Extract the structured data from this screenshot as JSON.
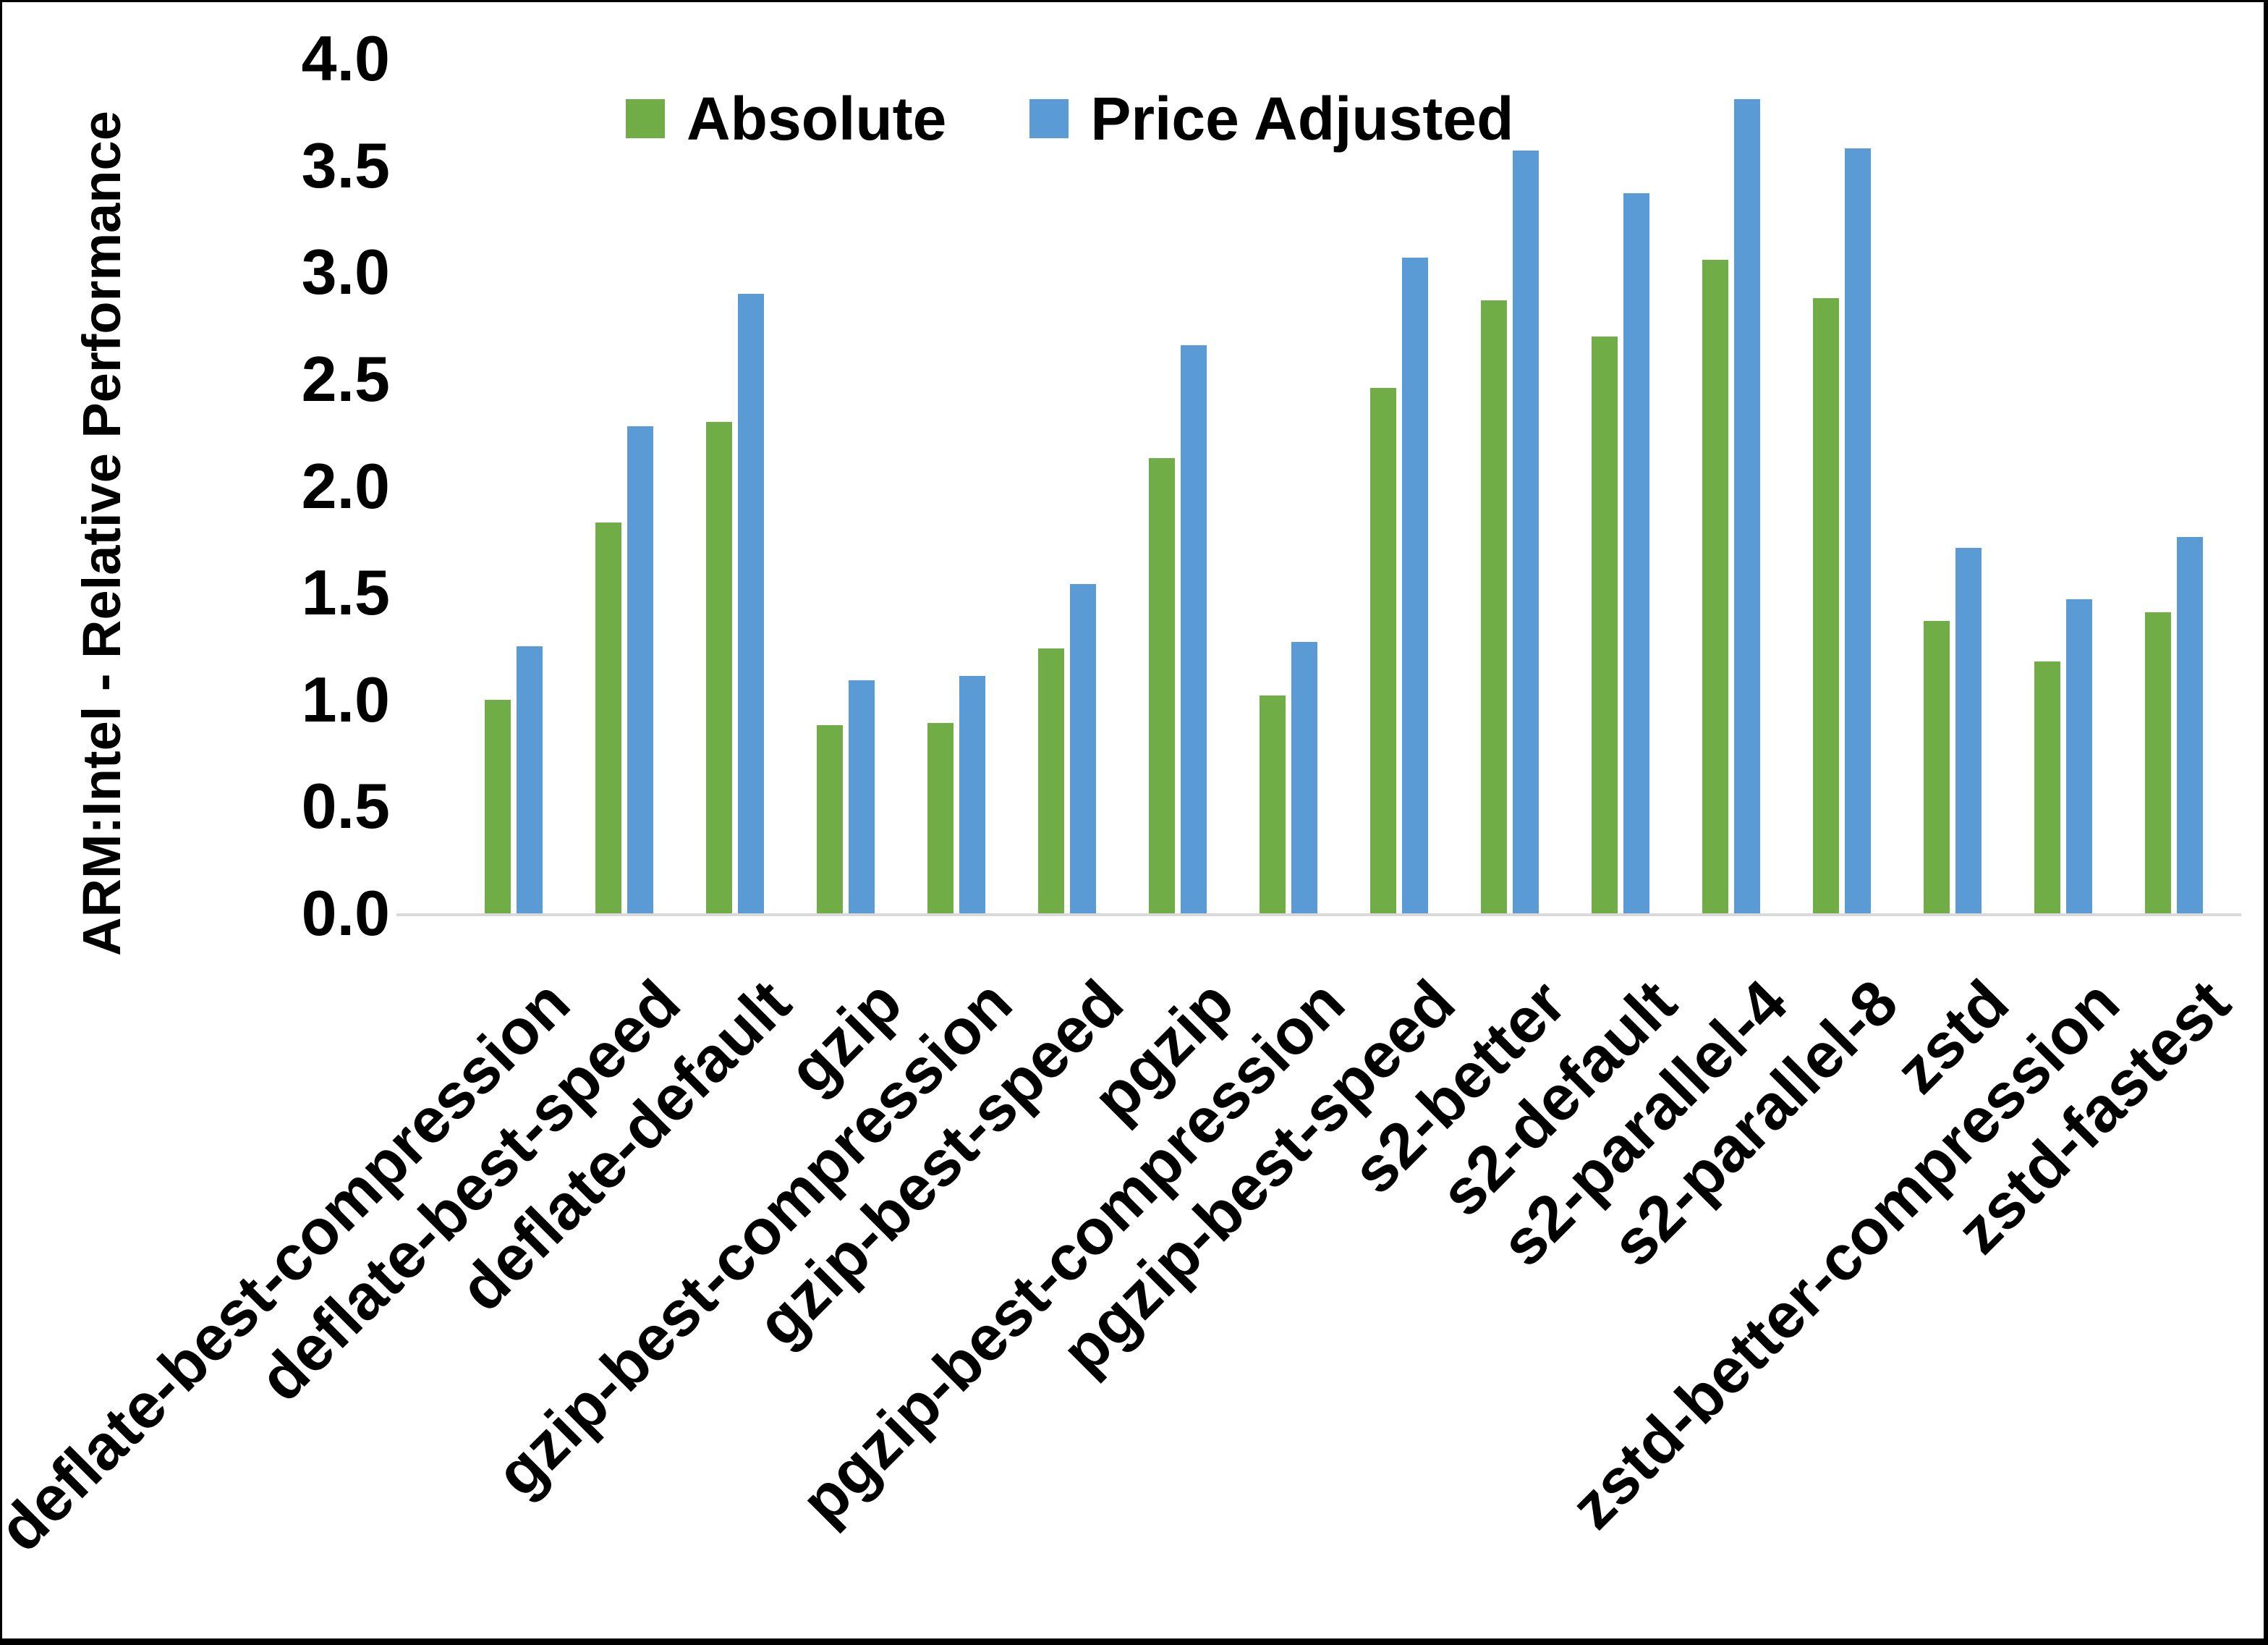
{
  "chart_data": {
    "type": "bar",
    "title": "",
    "ylabel": "ARM:Intel - Relative Performance",
    "xlabel": "",
    "ylim": [
      0.0,
      4.0
    ],
    "ytick_step": 0.5,
    "yticks": [
      "0.0",
      "0.5",
      "1.0",
      "1.5",
      "2.0",
      "2.5",
      "3.0",
      "3.5",
      "4.0"
    ],
    "grid": false,
    "legend_position": "top-center",
    "axis_line_color": "#D9D9D9",
    "categories": [
      "deflate-best-compression",
      "deflate-best-speed",
      "deflate-default",
      "gzip",
      "gzip-best-compression",
      "gzip-best-speed",
      "pgzip",
      "pgzip-best-compression",
      "pgzip-best-speed",
      "s2-better",
      "s2-default",
      "s2-parallel-4",
      "s2-parallel-8",
      "zstd",
      "zstd-better-compression",
      "zstd-fastest"
    ],
    "series": [
      {
        "name": "Absolute",
        "color": "#70AD47",
        "values": [
          1.0,
          1.83,
          2.3,
          0.88,
          0.89,
          1.24,
          2.13,
          1.02,
          2.46,
          2.87,
          2.7,
          3.06,
          2.88,
          1.37,
          1.18,
          1.41
        ]
      },
      {
        "name": "Price Adjusted",
        "color": "#5B9BD5",
        "values": [
          1.25,
          2.28,
          2.9,
          1.09,
          1.11,
          1.54,
          2.66,
          1.27,
          3.07,
          3.57,
          3.37,
          3.81,
          3.58,
          1.71,
          1.47,
          1.76
        ]
      }
    ]
  }
}
